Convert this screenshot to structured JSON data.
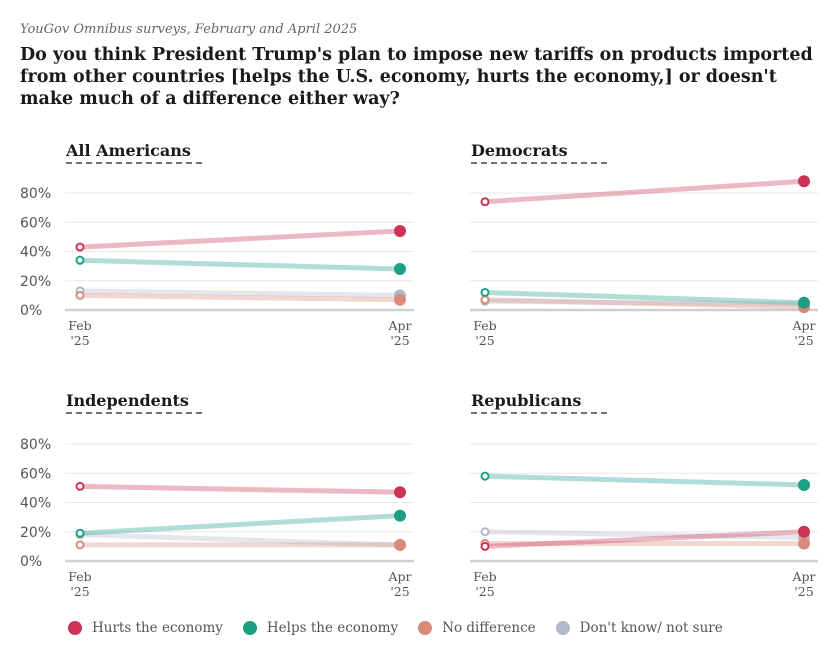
{
  "source": "YouGov Omnibus surveys, February and April 2025",
  "title": "Do you think President Trump's plan to impose new tariffs on products imported from other countries [helps the U.S. economy, hurts the economy,] or doesn't make much of a difference either way?",
  "colors": {
    "hurts": "#cc3355",
    "helps": "#1d9e86",
    "no_difference": "#d98a7a",
    "dont_know": "#b3b8c9"
  },
  "legend": [
    {
      "key": "hurts",
      "label": "Hurts the economy"
    },
    {
      "key": "helps",
      "label": "Helps the economy"
    },
    {
      "key": "no_difference",
      "label": "No difference"
    },
    {
      "key": "dont_know",
      "label": "Don't know/ not sure"
    }
  ],
  "chart_data": [
    {
      "type": "line",
      "title": "All Americans",
      "x": [
        "Feb '25",
        "Apr '25"
      ],
      "ylim": [
        0,
        80
      ],
      "yticks": [
        "80%",
        "60%",
        "40%",
        "20%",
        "0%"
      ],
      "series": [
        {
          "key": "dont_know",
          "name": "Don't know/ not sure",
          "values": [
            13,
            10
          ]
        },
        {
          "key": "no_difference",
          "name": "No difference",
          "values": [
            10,
            7
          ]
        },
        {
          "key": "helps",
          "name": "Helps the economy",
          "values": [
            34,
            28
          ]
        },
        {
          "key": "hurts",
          "name": "Hurts the economy",
          "values": [
            43,
            54
          ]
        }
      ]
    },
    {
      "type": "line",
      "title": "Democrats",
      "x": [
        "Feb '25",
        "Apr '25"
      ],
      "ylim": [
        0,
        80
      ],
      "yticks": [],
      "series": [
        {
          "key": "dont_know",
          "name": "Don't know/ not sure",
          "values": [
            6,
            4
          ]
        },
        {
          "key": "no_difference",
          "name": "No difference",
          "values": [
            7,
            2
          ]
        },
        {
          "key": "helps",
          "name": "Helps the economy",
          "values": [
            12,
            5
          ]
        },
        {
          "key": "hurts",
          "name": "Hurts the economy",
          "values": [
            74,
            88
          ]
        }
      ]
    },
    {
      "type": "line",
      "title": "Independents",
      "x": [
        "Feb '25",
        "Apr '25"
      ],
      "ylim": [
        0,
        80
      ],
      "yticks": [
        "80%",
        "60%",
        "40%",
        "20%",
        "0%"
      ],
      "series": [
        {
          "key": "dont_know",
          "name": "Don't know/ not sure",
          "values": [
            18,
            11
          ]
        },
        {
          "key": "no_difference",
          "name": "No difference",
          "values": [
            11,
            11
          ]
        },
        {
          "key": "helps",
          "name": "Helps the economy",
          "values": [
            19,
            31
          ]
        },
        {
          "key": "hurts",
          "name": "Hurts the economy",
          "values": [
            51,
            47
          ]
        }
      ]
    },
    {
      "type": "line",
      "title": "Republicans",
      "x": [
        "Feb '25",
        "Apr '25"
      ],
      "ylim": [
        0,
        80
      ],
      "yticks": [],
      "series": [
        {
          "key": "dont_know",
          "name": "Don't know/ not sure",
          "values": [
            20,
            16
          ]
        },
        {
          "key": "no_difference",
          "name": "No difference",
          "values": [
            12,
            12
          ]
        },
        {
          "key": "hurts",
          "name": "Hurts the economy",
          "values": [
            10,
            20
          ]
        },
        {
          "key": "helps",
          "name": "Helps the economy",
          "values": [
            58,
            52
          ]
        }
      ]
    }
  ]
}
